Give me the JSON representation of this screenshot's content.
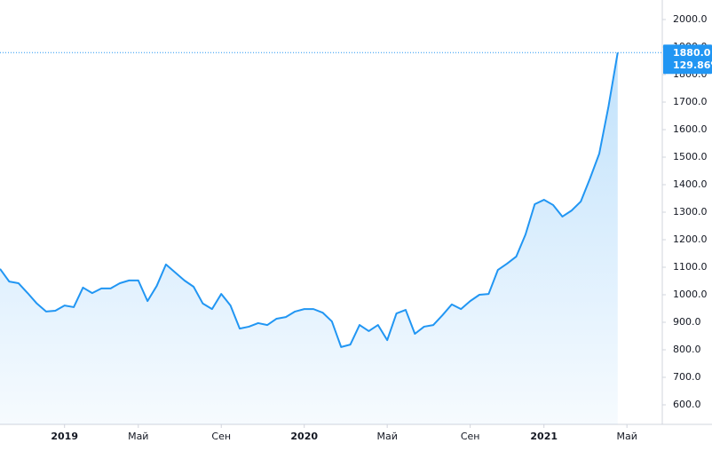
{
  "chart_data": {
    "type": "area",
    "color": "#2196f3",
    "categories": [
      null,
      null,
      null,
      null,
      null,
      null,
      null,
      "2019",
      null,
      null,
      null,
      null,
      null,
      null,
      null,
      "Май",
      null,
      null,
      null,
      null,
      null,
      null,
      null,
      null,
      "Сен",
      null,
      null,
      null,
      null,
      null,
      null,
      null,
      null,
      "2020",
      null,
      null,
      null,
      null,
      null,
      null,
      null,
      null,
      "Май",
      null,
      null,
      null,
      null,
      null,
      null,
      null,
      null,
      "Сен",
      null,
      null,
      null,
      null,
      null,
      null,
      null,
      "2021",
      null,
      null,
      null,
      null,
      null,
      null,
      null,
      null,
      "Май",
      null,
      null,
      null
    ],
    "values": [
      1094,
      1048,
      1042,
      1006,
      968,
      939,
      942,
      961,
      955,
      1026,
      1006,
      1023,
      1023,
      1042,
      1052,
      1052,
      977,
      1032,
      1110,
      1081,
      1052,
      1029,
      968,
      948,
      1003,
      961,
      877,
      884,
      897,
      890,
      913,
      919,
      939,
      948,
      948,
      935,
      903,
      810,
      819,
      890,
      868,
      890,
      835,
      932,
      945,
      858,
      884,
      890,
      926,
      965,
      948,
      977,
      1000,
      1003,
      1090,
      1113,
      1139,
      1219,
      1329,
      1345,
      1326,
      1284,
      1306,
      1339,
      1423,
      1513,
      1684,
      1880,
      null,
      null,
      null,
      null
    ],
    "value_labels": {
      "67": "1880.0"
    },
    "change_label": "129.86%",
    "ylim": [
      529,
      2071
    ],
    "yticks": [
      {
        "value": 600,
        "label": "600.0"
      },
      {
        "value": 700,
        "label": "700.0"
      },
      {
        "value": 800,
        "label": "800.0"
      },
      {
        "value": 900,
        "label": "900.0"
      },
      {
        "value": 1000,
        "label": "1000.0"
      },
      {
        "value": 1100,
        "label": "1100.0"
      },
      {
        "value": 1200,
        "label": "1200.0"
      },
      {
        "value": 1300,
        "label": "1300.0"
      },
      {
        "value": 1400,
        "label": "1400.0"
      },
      {
        "value": 1500,
        "label": "1500.0"
      },
      {
        "value": 1600,
        "label": "1600.0"
      },
      {
        "value": 1700,
        "label": "1700.0"
      },
      {
        "value": 1800,
        "label": "1800.0"
      },
      {
        "value": 1900,
        "label": "1900.0"
      },
      {
        "value": 2000,
        "label": "2000.0"
      }
    ]
  }
}
